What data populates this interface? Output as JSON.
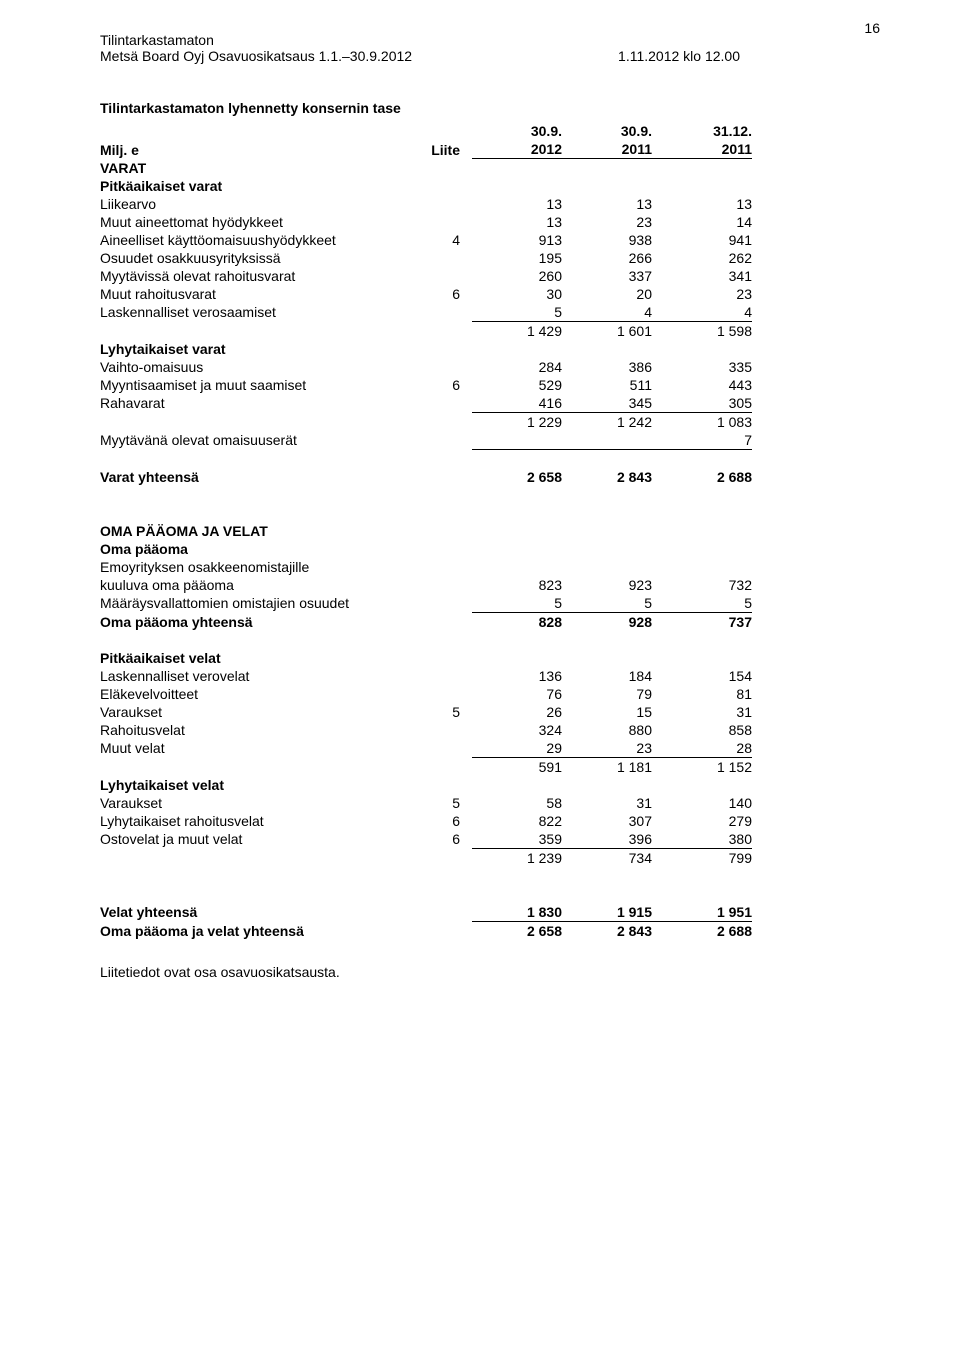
{
  "page_number": "16",
  "header": {
    "unaudited": "Tilintarkastamaton",
    "left": "Metsä Board Oyj Osavuosikatsaus 1.1.–30.9.2012",
    "right": "1.11.2012 klo 12.00"
  },
  "title": "Tilintarkastamaton lyhennetty konsernin tase",
  "col_headers": {
    "c1": "30.9.",
    "c2": "30.9.",
    "c3": "31.12."
  },
  "unit_row": {
    "label": "Milj. e",
    "note": "Liite",
    "c1": "2012",
    "c2": "2011",
    "c3": "2011"
  },
  "varat_label": "VARAT",
  "pitkaikaiset_varat_label": "Pitkäaikaiset varat",
  "assets_long": [
    {
      "label": "Liikearvo",
      "note": "",
      "c1": "13",
      "c2": "13",
      "c3": "13"
    },
    {
      "label": "Muut aineettomat hyödykkeet",
      "note": "",
      "c1": "13",
      "c2": "23",
      "c3": "14"
    },
    {
      "label": "Aineelliset käyttöomaisuushyödykkeet",
      "note": "4",
      "c1": "913",
      "c2": "938",
      "c3": "941"
    },
    {
      "label": "Osuudet osakkuusyrityksissä",
      "note": "",
      "c1": "195",
      "c2": "266",
      "c3": "262"
    },
    {
      "label": "Myytävissä olevat rahoitusvarat",
      "note": "",
      "c1": "260",
      "c2": "337",
      "c3": "341"
    },
    {
      "label": "Muut rahoitusvarat",
      "note": "6",
      "c1": "30",
      "c2": "20",
      "c3": "23"
    }
  ],
  "assets_long_last": {
    "label": "Laskennalliset verosaamiset",
    "note": "",
    "c1": "5",
    "c2": "4",
    "c3": "4"
  },
  "assets_long_total": {
    "c1": "1 429",
    "c2": "1 601",
    "c3": "1 598"
  },
  "lyhyt_varat_label": "Lyhytaikaiset varat",
  "assets_short": [
    {
      "label": "Vaihto-omaisuus",
      "note": "",
      "c1": "284",
      "c2": "386",
      "c3": "335"
    },
    {
      "label": "Myyntisaamiset ja muut saamiset",
      "note": "6",
      "c1": "529",
      "c2": "511",
      "c3": "443"
    }
  ],
  "assets_short_last": {
    "label": "Rahavarat",
    "note": "",
    "c1": "416",
    "c2": "345",
    "c3": "305"
  },
  "assets_short_total": {
    "c1": "1 229",
    "c2": "1 242",
    "c3": "1 083"
  },
  "held_for_sale": {
    "label": "Myytävänä olevat omaisuuserät",
    "c3": "7"
  },
  "varat_yht": {
    "label": "Varat yhteensä",
    "c1": "2 658",
    "c2": "2 843",
    "c3": "2 688"
  },
  "equity_heading": "OMA PÄÄOMA JA VELAT",
  "equity_label": "Oma pääoma",
  "equity_parent_label": "Emoyrityksen osakkeenomistajille",
  "equity_rows": [
    {
      "label": "kuuluva oma pääoma",
      "c1": "823",
      "c2": "923",
      "c3": "732"
    }
  ],
  "equity_last": {
    "label": "Määräysvallattomien omistajien osuudet",
    "c1": "5",
    "c2": "5",
    "c3": "5"
  },
  "equity_total": {
    "label": "Oma pääoma yhteensä",
    "c1": "828",
    "c2": "928",
    "c3": "737"
  },
  "long_liab_label": "Pitkäaikaiset velat",
  "long_liab": [
    {
      "label": "Laskennalliset verovelat",
      "note": "",
      "c1": "136",
      "c2": "184",
      "c3": "154"
    },
    {
      "label": "Eläkevelvoitteet",
      "note": "",
      "c1": "76",
      "c2": "79",
      "c3": "81"
    },
    {
      "label": "Varaukset",
      "note": "5",
      "c1": "26",
      "c2": "15",
      "c3": "31"
    },
    {
      "label": "Rahoitusvelat",
      "note": "",
      "c1": "324",
      "c2": "880",
      "c3": "858"
    }
  ],
  "long_liab_last": {
    "label": "Muut velat",
    "note": "",
    "c1": "29",
    "c2": "23",
    "c3": "28"
  },
  "long_liab_total": {
    "c1": "591",
    "c2": "1 181",
    "c3": "1 152"
  },
  "short_liab_label": "Lyhytaikaiset velat",
  "short_liab": [
    {
      "label": "Varaukset",
      "note": "5",
      "c1": "58",
      "c2": "31",
      "c3": "140"
    },
    {
      "label": "Lyhytaikaiset rahoitusvelat",
      "note": "6",
      "c1": "822",
      "c2": "307",
      "c3": "279"
    }
  ],
  "short_liab_last": {
    "label": "Ostovelat ja muut velat",
    "note": "6",
    "c1": "359",
    "c2": "396",
    "c3": "380"
  },
  "short_liab_total": {
    "c1": "1 239",
    "c2": "734",
    "c3": "799"
  },
  "velat_yht": {
    "label": "Velat yhteensä",
    "c1": "1 830",
    "c2": "1 915",
    "c3": "1 951"
  },
  "grand_total": {
    "label": "Oma pääoma ja velat yhteensä",
    "c1": "2 658",
    "c2": "2 843",
    "c3": "2 688"
  },
  "footnote": "Liitetiedot ovat osa osavuosikatsausta."
}
